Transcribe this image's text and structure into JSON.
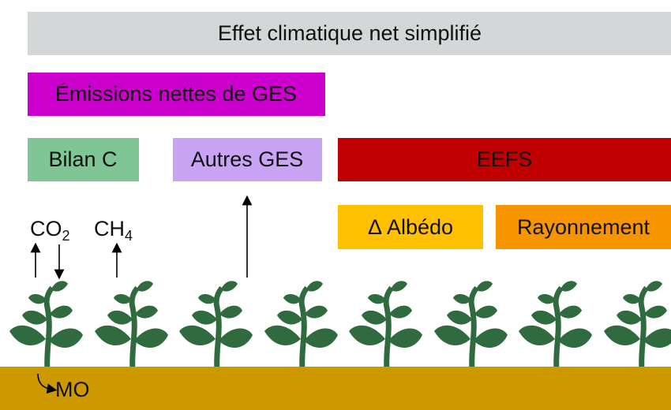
{
  "title": "Effet climatique net simplifié",
  "boxes": [
    "Émissions nettes de GES",
    "Bilan C",
    "Autres GES",
    "EEFS",
    "Δ Albédo",
    "Rayonnement"
  ],
  "gases": [
    {
      "base": "CO",
      "sub": "2"
    },
    {
      "base": "CH",
      "sub": "4"
    }
  ],
  "soil": "MO"
}
